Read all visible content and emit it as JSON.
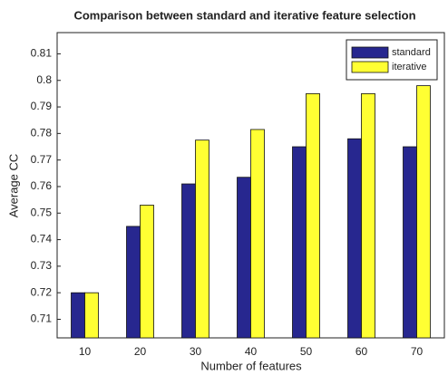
{
  "chart_data": {
    "type": "bar",
    "title": "Comparison between standard and iterative feature selection",
    "x_label": "Number of features",
    "y_label": "Average CC",
    "categories": [
      "10",
      "20",
      "30",
      "40",
      "50",
      "60",
      "70"
    ],
    "series": [
      {
        "name": "standard",
        "color": "#27278f",
        "values": [
          0.72,
          0.745,
          0.761,
          0.7635,
          0.775,
          0.778,
          0.775
        ]
      },
      {
        "name": "iterative",
        "color": "#ffff33",
        "values": [
          0.72,
          0.753,
          0.7775,
          0.7815,
          0.795,
          0.795,
          0.798
        ]
      }
    ],
    "ylim": [
      0.703,
      0.818
    ],
    "yticks": [
      0.71,
      0.72,
      0.73,
      0.74,
      0.75,
      0.76,
      0.77,
      0.78,
      0.79,
      0.8,
      0.81
    ],
    "legend": "upper right",
    "grid": false
  }
}
